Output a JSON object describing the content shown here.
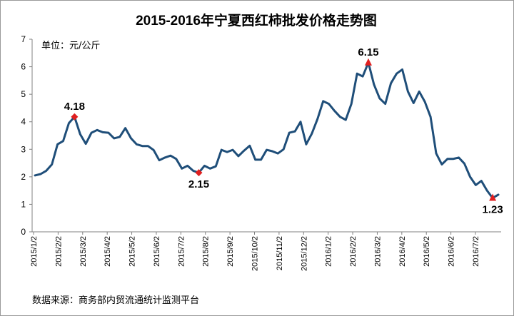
{
  "chart_data": {
    "type": "line",
    "title": "2015-2016年宁夏西红柿批发价格走势图",
    "unit_label": "单位：元/公斤",
    "source": "数据来源：商务部内贸流通统计监测平台",
    "ylim": [
      0,
      7
    ],
    "y_ticks": [
      "0",
      "1",
      "2",
      "3",
      "4",
      "5",
      "6",
      "7"
    ],
    "x_tick_labels": [
      "2015/1/2",
      "2015/2/2",
      "2015/3/2",
      "2015/4/2",
      "2015/5/2",
      "2015/6/2",
      "2015/7/2",
      "2015/8/2",
      "2015/9/2",
      "2015/10/2",
      "2015/11/2",
      "2015/12/2",
      "2016/1/2",
      "2016/2/2",
      "2016/3/2",
      "2016/4/2",
      "2016/5/2",
      "2016/6/2",
      "2016/7/2"
    ],
    "grid": false,
    "line_color": "#1f4e79",
    "marker_color": "#e02020",
    "series": [
      {
        "values": [
          2.05,
          2.1,
          2.22,
          2.45,
          3.18,
          3.3,
          3.95,
          4.18,
          3.55,
          3.2,
          3.6,
          3.7,
          3.62,
          3.6,
          3.4,
          3.45,
          3.77,
          3.4,
          3.18,
          3.12,
          3.12,
          2.97,
          2.6,
          2.7,
          2.77,
          2.65,
          2.3,
          2.4,
          2.22,
          2.15,
          2.4,
          2.3,
          2.38,
          2.98,
          2.9,
          2.98,
          2.75,
          2.95,
          3.13,
          2.62,
          2.62,
          2.98,
          2.93,
          2.85,
          3.0,
          3.6,
          3.65,
          4.0,
          3.18,
          3.57,
          4.1,
          4.75,
          4.65,
          4.4,
          4.18,
          4.07,
          4.65,
          5.75,
          5.65,
          6.15,
          5.35,
          4.85,
          4.65,
          5.4,
          5.75,
          5.9,
          5.1,
          4.68,
          5.1,
          4.73,
          4.18,
          2.85,
          2.45,
          2.65,
          2.65,
          2.7,
          2.48,
          2.0,
          1.7,
          1.85,
          1.5,
          1.23,
          1.35
        ]
      }
    ],
    "annotations": [
      {
        "label": "4.18",
        "index": 7,
        "value": 4.18,
        "marker": "diamond"
      },
      {
        "label": "2.15",
        "index": 29,
        "value": 2.15,
        "marker": "diamond"
      },
      {
        "label": "6.15",
        "index": 59,
        "value": 6.15,
        "marker": "triangle"
      },
      {
        "label": "1.23",
        "index": 81,
        "value": 1.23,
        "marker": "triangle"
      }
    ]
  }
}
